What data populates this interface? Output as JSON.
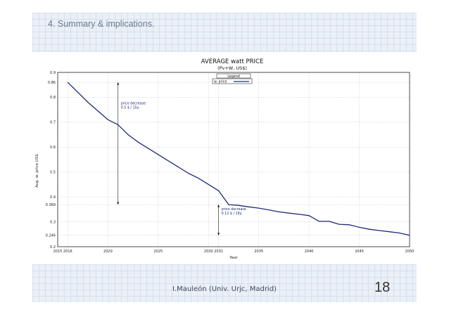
{
  "slide": {
    "title": "4. Summary & implications.",
    "footer": "I.Mauleón (Univ. Urjc, Madrid)",
    "page_number": "18"
  },
  "chart_data": {
    "type": "line",
    "title": "AVERAGE watt PRICE",
    "subtitle": "(Pv+W, US$)",
    "xlabel": "Year",
    "ylabel": "Avg. w. price US$",
    "xlim": [
      2015,
      2050
    ],
    "ylim": [
      0.2,
      0.9
    ],
    "x_ticks": [
      2015,
      2016,
      2020,
      2025,
      2030,
      2031,
      2035,
      2040,
      2045,
      2050
    ],
    "y_ticks": [
      0.2,
      0.246,
      0.3,
      0.369,
      0.4,
      0.5,
      0.6,
      0.7,
      0.8,
      0.86,
      0.9
    ],
    "grid": true,
    "legend": {
      "title": "Legend",
      "placement": "top",
      "entries": [
        "w. price"
      ]
    },
    "series": [
      {
        "name": "w. price",
        "color": "#1f2a78",
        "x": [
          2016,
          2017,
          2018,
          2019,
          2020,
          2021,
          2022,
          2023,
          2024,
          2025,
          2026,
          2027,
          2028,
          2029,
          2030,
          2031,
          2032,
          2033,
          2034,
          2035,
          2036,
          2037,
          2038,
          2039,
          2040,
          2041,
          2042,
          2043,
          2044,
          2045,
          2046,
          2047,
          2048,
          2049,
          2050
        ],
        "y": [
          0.86,
          0.82,
          0.78,
          0.745,
          0.71,
          0.69,
          0.65,
          0.62,
          0.595,
          0.57,
          0.545,
          0.52,
          0.495,
          0.475,
          0.45,
          0.425,
          0.369,
          0.366,
          0.36,
          0.355,
          0.348,
          0.34,
          0.335,
          0.33,
          0.325,
          0.302,
          0.302,
          0.29,
          0.288,
          0.278,
          0.27,
          0.265,
          0.26,
          0.255,
          0.246
        ]
      }
    ],
    "annotations": [
      {
        "text_lines": [
          "price decrease",
          "0.5 $ / 15y."
        ],
        "arrow_x": 2021,
        "arrow_from": 0.86,
        "arrow_to": 0.369
      },
      {
        "text_lines": [
          "price decrease",
          "0.12 $ / 19y."
        ],
        "arrow_x": 2031,
        "arrow_from": 0.369,
        "arrow_to": 0.246
      }
    ]
  }
}
